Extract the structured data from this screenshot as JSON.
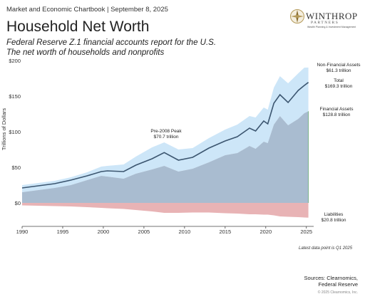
{
  "header": {
    "kicker": "Market and Economic Chartbook | September 8, 2025",
    "title": "Household Net Worth",
    "subtitle_1": "Federal Reserve Z.1 financial accounts report for the U.S.",
    "subtitle_2": "The net worth of households and nonprofits"
  },
  "logo": {
    "name": "WINTHROP",
    "sub": "PARTNERS",
    "tagline": "Wealth Planning & Investment Management"
  },
  "chart_data": {
    "type": "area",
    "title": "Household Net Worth",
    "ylabel": "Trillions of Dollars",
    "xlabel": "",
    "xlim": [
      1990,
      2025.9
    ],
    "ylim": [
      -30,
      200
    ],
    "x_ticks": [
      1990,
      1995,
      2000,
      2005,
      2010,
      2015,
      2020,
      2025
    ],
    "y_ticks": [
      {
        "value": 200,
        "label": "$200"
      },
      {
        "value": 150,
        "label": "$150"
      },
      {
        "value": 100,
        "label": "$100"
      },
      {
        "value": 50,
        "label": "$50"
      },
      {
        "value": 0,
        "label": "$0"
      }
    ],
    "grid": false,
    "x": [
      1990,
      1992,
      1994,
      1996,
      1998,
      1999.75,
      2000.5,
      2002.5,
      2004,
      2006,
      2007.5,
      2009.25,
      2011,
      2013,
      2015,
      2016.5,
      2018,
      2018.75,
      2019.75,
      2020.25,
      2021,
      2021.75,
      2022.75,
      2024,
      2024.75,
      2025.25
    ],
    "series": [
      {
        "name": "Financial Assets",
        "color": "#a9bcd0",
        "values": [
          15,
          18,
          21,
          25,
          32,
          38,
          37,
          34,
          41,
          47,
          52,
          44,
          48,
          57,
          67,
          70,
          80,
          76,
          86,
          84,
          110,
          122,
          109,
          118,
          126,
          128.8
        ]
      },
      {
        "name": "Total",
        "color": "#3c5670",
        "values": [
          21,
          24,
          27,
          32,
          38,
          44,
          45,
          44,
          53,
          62,
          70.7,
          60,
          64,
          77,
          87,
          93,
          105,
          101,
          115,
          111,
          140,
          152,
          141,
          158,
          165,
          169.3
        ]
      },
      {
        "name": "Non-Financial Assets",
        "color": "#cde6f8",
        "values": [
          25,
          28,
          31,
          36,
          43,
          51,
          52,
          54,
          65,
          78,
          85,
          75,
          77,
          91,
          103,
          110,
          122,
          120,
          134,
          131,
          162,
          178,
          168,
          182,
          190,
          190.1
        ]
      },
      {
        "name": "Liabilities",
        "color": "#e8b3b5",
        "values": [
          -3.5,
          -4,
          -4.5,
          -5,
          -6,
          -7,
          -7.5,
          -8.5,
          -10,
          -12,
          -14,
          -14,
          -13.5,
          -13.5,
          -14.5,
          -15,
          -16,
          -16,
          -16.5,
          -16.5,
          -17.5,
          -19,
          -19.5,
          -20,
          -20.5,
          -20.8
        ]
      }
    ],
    "annotations": [
      {
        "line1": "Non-Financial Assets",
        "line2": "$61.3 trillion"
      },
      {
        "line1": "Total",
        "line2": "$169.3 trillion"
      },
      {
        "line1": "Financial Assets",
        "line2": "$128.8 trillion"
      },
      {
        "line1": "Liabilities",
        "line2": "$20.8 trillion"
      },
      {
        "line1": "Pre-2008 Peak",
        "line2": "$70.7 trillion"
      }
    ]
  },
  "footer": {
    "note": "Latest data point is Q1 2025",
    "sources_1": "Sources: Clearnomics,",
    "sources_2": "Federal Reserve",
    "copyright": "© 2025 Clearnomics, Inc."
  }
}
